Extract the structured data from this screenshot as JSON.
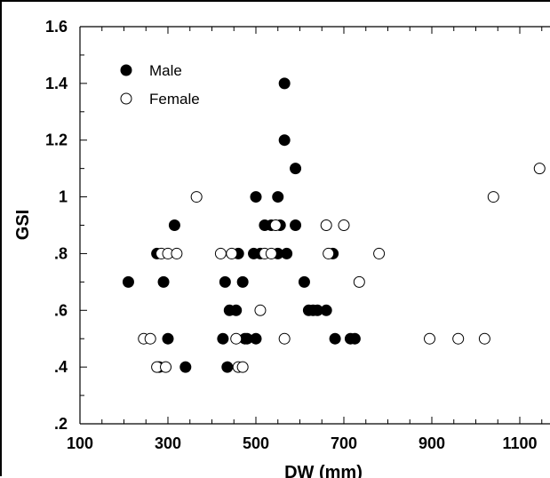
{
  "chart_data": {
    "type": "scatter",
    "xlabel": "DW (mm)",
    "ylabel": "GSI",
    "xlim": [
      100,
      1200
    ],
    "ylim": [
      0.2,
      1.6
    ],
    "x_ticks": [
      100,
      300,
      500,
      700,
      900,
      1100
    ],
    "x_tick_labels": [
      "100",
      "300",
      "500",
      "700",
      "900",
      "1100"
    ],
    "y_ticks": [
      0.2,
      0.4,
      0.6,
      0.8,
      1.0,
      1.2,
      1.4,
      1.6
    ],
    "y_tick_labels": [
      ".2",
      ".4",
      ".6",
      ".8",
      "1",
      "1.2",
      "1.4",
      "1.6"
    ],
    "legend_placement": "top-left",
    "grid": false,
    "series": [
      {
        "name": "Male",
        "marker": "filled-circle",
        "color": "#000000",
        "points": [
          [
            210,
            0.7
          ],
          [
            275,
            0.8
          ],
          [
            280,
            0.4
          ],
          [
            290,
            0.7
          ],
          [
            300,
            0.5
          ],
          [
            315,
            0.9
          ],
          [
            340,
            0.4
          ],
          [
            425,
            0.5
          ],
          [
            430,
            0.7
          ],
          [
            435,
            0.4
          ],
          [
            440,
            0.6
          ],
          [
            455,
            0.6
          ],
          [
            460,
            0.8
          ],
          [
            470,
            0.7
          ],
          [
            475,
            0.5
          ],
          [
            480,
            0.5
          ],
          [
            495,
            0.8
          ],
          [
            500,
            0.5
          ],
          [
            500,
            1.0
          ],
          [
            510,
            0.8
          ],
          [
            520,
            0.9
          ],
          [
            535,
            0.9
          ],
          [
            550,
            0.8
          ],
          [
            550,
            1.0
          ],
          [
            555,
            0.9
          ],
          [
            565,
            1.2
          ],
          [
            565,
            1.4
          ],
          [
            570,
            0.8
          ],
          [
            590,
            0.9
          ],
          [
            590,
            1.1
          ],
          [
            610,
            0.7
          ],
          [
            620,
            0.6
          ],
          [
            630,
            0.6
          ],
          [
            640,
            0.6
          ],
          [
            660,
            0.6
          ],
          [
            675,
            0.8
          ],
          [
            680,
            0.5
          ],
          [
            715,
            0.5
          ],
          [
            725,
            0.5
          ]
        ]
      },
      {
        "name": "Female",
        "marker": "open-circle",
        "color": "#000000",
        "points": [
          [
            245,
            0.5
          ],
          [
            260,
            0.5
          ],
          [
            275,
            0.4
          ],
          [
            285,
            0.8
          ],
          [
            295,
            0.4
          ],
          [
            300,
            0.8
          ],
          [
            320,
            0.8
          ],
          [
            365,
            1.0
          ],
          [
            420,
            0.8
          ],
          [
            445,
            0.8
          ],
          [
            455,
            0.5
          ],
          [
            460,
            0.4
          ],
          [
            470,
            0.4
          ],
          [
            510,
            0.6
          ],
          [
            520,
            0.8
          ],
          [
            535,
            0.8
          ],
          [
            545,
            0.9
          ],
          [
            565,
            0.5
          ],
          [
            660,
            0.9
          ],
          [
            665,
            0.8
          ],
          [
            700,
            0.9
          ],
          [
            735,
            0.7
          ],
          [
            780,
            0.8
          ],
          [
            895,
            0.5
          ],
          [
            960,
            0.5
          ],
          [
            1020,
            0.5
          ],
          [
            1040,
            1.0
          ],
          [
            1145,
            1.1
          ]
        ]
      }
    ]
  }
}
